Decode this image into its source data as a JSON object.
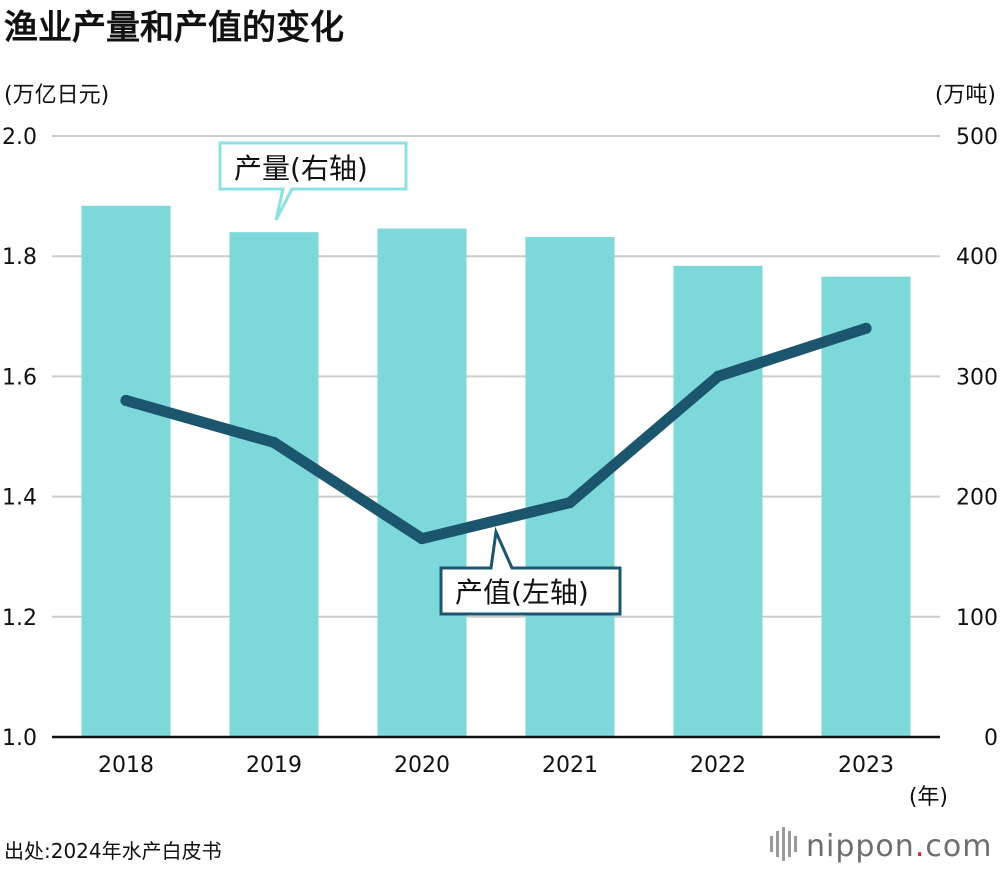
{
  "title": "渔业产量和产值的变化",
  "left_unit": "(万亿日元)",
  "right_unit": "(万吨)",
  "x_unit": "(年)",
  "source": "出处:2024年水产白皮书",
  "brand": {
    "name": "nippon",
    "dot": ".",
    "suffix": "com"
  },
  "colors": {
    "bar": "#7dd9d9",
    "line": "#1b566e",
    "grid": "#cccccc",
    "axis": "#111111"
  },
  "chart_data": {
    "type": "bar+line",
    "categories": [
      "2018",
      "2019",
      "2020",
      "2021",
      "2022",
      "2023"
    ],
    "series": [
      {
        "name": "产量(右轴)",
        "type": "bar",
        "axis": "right",
        "values": [
          442,
          420,
          423,
          416,
          392,
          383
        ]
      },
      {
        "name": "产值(左轴)",
        "type": "line",
        "axis": "left",
        "values": [
          1.56,
          1.49,
          1.33,
          1.39,
          1.6,
          1.68
        ]
      }
    ],
    "left_axis": {
      "ylim": [
        1.0,
        2.0
      ],
      "ticks": [
        "1.0",
        "1.2",
        "1.4",
        "1.6",
        "1.8",
        "2.0"
      ]
    },
    "right_axis": {
      "ylim": [
        0,
        500
      ],
      "ticks": [
        "0",
        "100",
        "200",
        "300",
        "400",
        "500"
      ]
    },
    "grid": true
  }
}
